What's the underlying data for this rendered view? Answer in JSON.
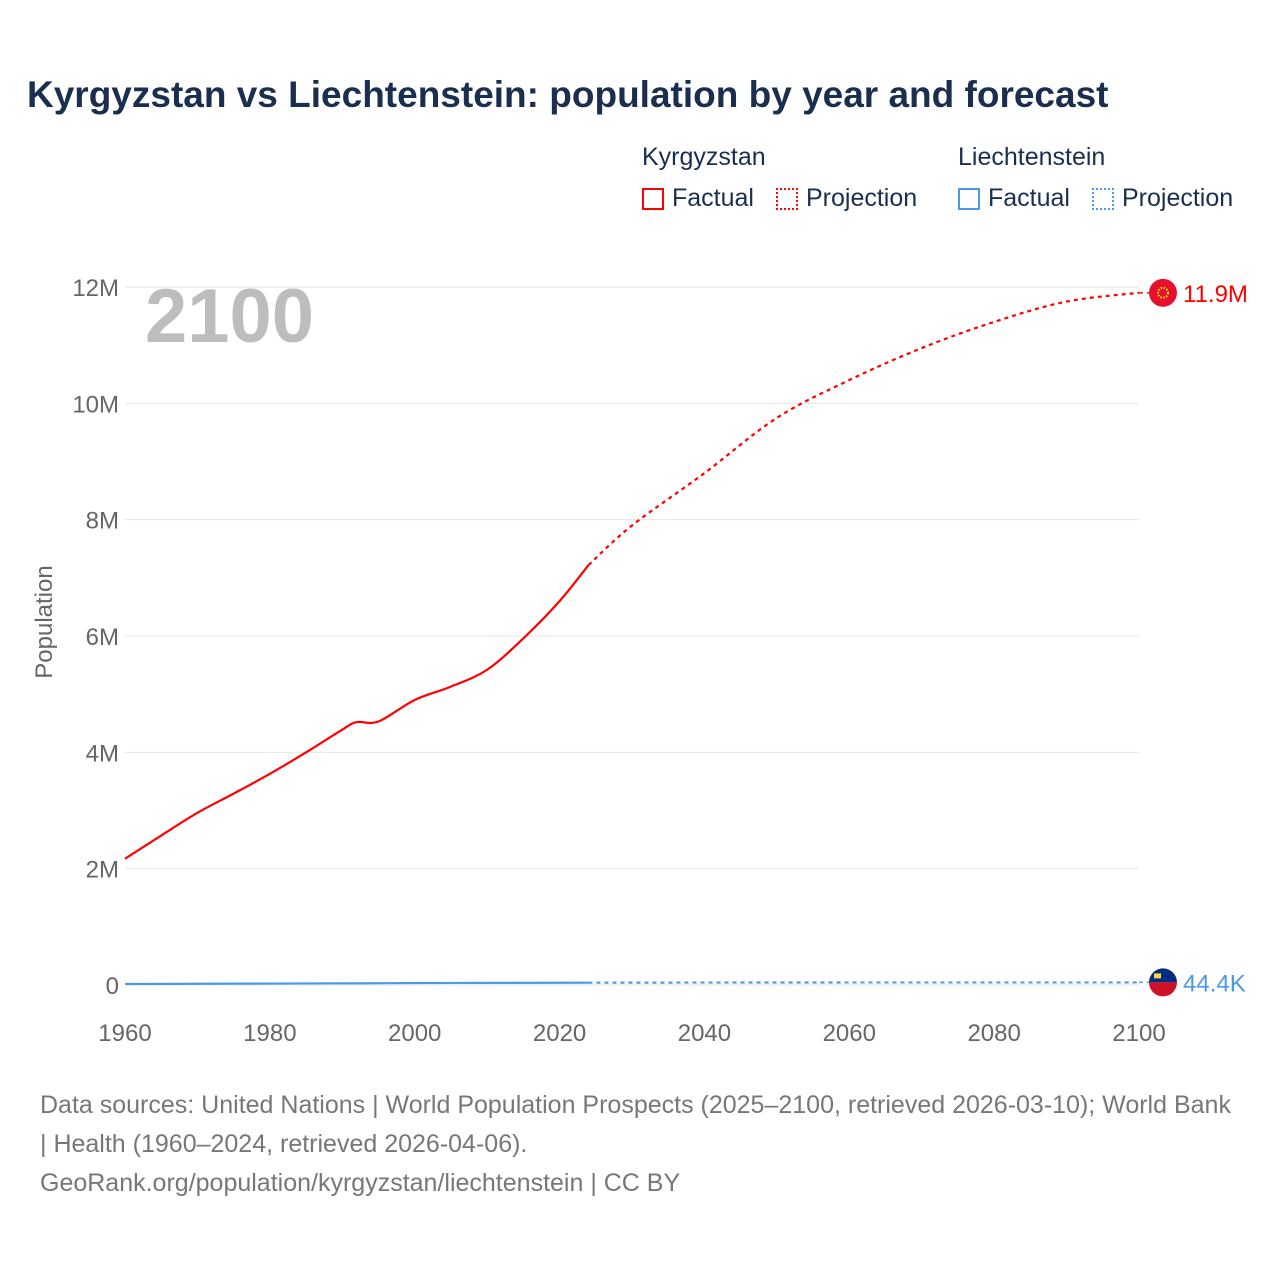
{
  "title": "Kyrgyzstan vs Liechtenstein: population by year and forecast",
  "legend": [
    {
      "country": "Kyrgyzstan",
      "color": "#ff0000",
      "factual": "Factual",
      "projection": "Projection"
    },
    {
      "country": "Liechtenstein",
      "color": "#4a9ae8",
      "factual": "Factual",
      "projection": "Projection"
    }
  ],
  "footer": {
    "sources": "Data sources: United Nations | World Population Prospects (2025–2100, retrieved 2026-03-10); World Bank | Health (1960–2024, retrieved 2026-04-06).",
    "link": "GeoRank.org/population/kyrgyzstan/liechtenstein | CC BY"
  },
  "chart_data": {
    "type": "line",
    "title": "Kyrgyzstan vs Liechtenstein: population by year and forecast",
    "year_label": "2100",
    "xlabel": "",
    "ylabel": "Population",
    "xlim": [
      1960,
      2100
    ],
    "ylim": [
      0,
      12000000
    ],
    "x_ticks": [
      1960,
      1980,
      2000,
      2020,
      2040,
      2060,
      2080,
      2100
    ],
    "y_ticks": [
      {
        "v": 0,
        "label": "0"
      },
      {
        "v": 2000000,
        "label": "2M"
      },
      {
        "v": 4000000,
        "label": "4M"
      },
      {
        "v": 6000000,
        "label": "6M"
      },
      {
        "v": 8000000,
        "label": "8M"
      },
      {
        "v": 10000000,
        "label": "10M"
      },
      {
        "v": 12000000,
        "label": "12M"
      }
    ],
    "grid": true,
    "series": [
      {
        "name": "Kyrgyzstan",
        "color": "#ff0000",
        "end_label": "11.9M",
        "flag": "kyrgyzstan",
        "factual": [
          [
            1960,
            2170000
          ],
          [
            1965,
            2570000
          ],
          [
            1970,
            2960000
          ],
          [
            1975,
            3290000
          ],
          [
            1980,
            3630000
          ],
          [
            1985,
            4000000
          ],
          [
            1990,
            4390000
          ],
          [
            1992,
            4520000
          ],
          [
            1995,
            4530000
          ],
          [
            2000,
            4900000
          ],
          [
            2005,
            5130000
          ],
          [
            2010,
            5420000
          ],
          [
            2015,
            5960000
          ],
          [
            2020,
            6600000
          ],
          [
            2024,
            7220000
          ]
        ],
        "projection": [
          [
            2024,
            7220000
          ],
          [
            2030,
            7900000
          ],
          [
            2040,
            8800000
          ],
          [
            2050,
            9750000
          ],
          [
            2060,
            10400000
          ],
          [
            2070,
            10950000
          ],
          [
            2080,
            11400000
          ],
          [
            2090,
            11750000
          ],
          [
            2100,
            11900000
          ]
        ]
      },
      {
        "name": "Liechtenstein",
        "color": "#4a9ae8",
        "end_label": "44.4K",
        "flag": "liechtenstein",
        "factual": [
          [
            1960,
            16500
          ],
          [
            1970,
            21000
          ],
          [
            1980,
            25000
          ],
          [
            1990,
            29000
          ],
          [
            2000,
            33000
          ],
          [
            2010,
            36000
          ],
          [
            2020,
            38900
          ],
          [
            2024,
            40000
          ]
        ],
        "projection": [
          [
            2024,
            40000
          ],
          [
            2050,
            43000
          ],
          [
            2075,
            44300
          ],
          [
            2100,
            44400
          ]
        ]
      }
    ]
  }
}
